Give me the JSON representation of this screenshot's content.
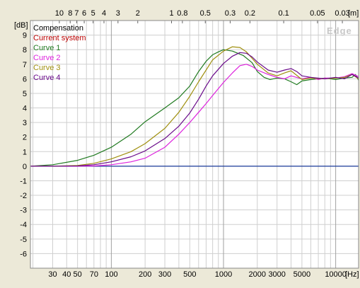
{
  "chart_data": {
    "type": "line",
    "x_scale": "log",
    "y_unit": "[dB]",
    "x_unit": "[Hz]",
    "top_unit": "[m]",
    "xlim": [
      19,
      16000
    ],
    "ylim": [
      -7,
      10
    ],
    "y_ticks": [
      9,
      8,
      7,
      6,
      5,
      4,
      3,
      2,
      1,
      0,
      -1,
      -2,
      -3,
      -4,
      -5,
      -6
    ],
    "x_tick_labels": [
      {
        "v": 30,
        "label": "30"
      },
      {
        "v": 40,
        "label": "40"
      },
      {
        "v": 50,
        "label": "50"
      },
      {
        "v": 70,
        "label": "70"
      },
      {
        "v": 100,
        "label": "100"
      },
      {
        "v": 200,
        "label": "200"
      },
      {
        "v": 300,
        "label": "300"
      },
      {
        "v": 500,
        "label": "500"
      },
      {
        "v": 1000,
        "label": "1000"
      },
      {
        "v": 2000,
        "label": "2000"
      },
      {
        "v": 3000,
        "label": "3000"
      },
      {
        "v": 5000,
        "label": "5000"
      },
      {
        "v": 10000,
        "label": "10000"
      }
    ],
    "top_tick_labels": [
      {
        "v": 10,
        "label": "10"
      },
      {
        "v": 8,
        "label": "8"
      },
      {
        "v": 7,
        "label": "7"
      },
      {
        "v": 6,
        "label": "6"
      },
      {
        "v": 5,
        "label": "5"
      },
      {
        "v": 4,
        "label": "4"
      },
      {
        "v": 3,
        "label": "3"
      },
      {
        "v": 2,
        "label": "2"
      },
      {
        "v": 1,
        "label": "1"
      },
      {
        "v": 0.8,
        "label": "0.8"
      },
      {
        "v": 0.5,
        "label": "0.5"
      },
      {
        "v": 0.3,
        "label": "0.3"
      },
      {
        "v": 0.2,
        "label": "0.2"
      },
      {
        "v": 0.1,
        "label": "0.1"
      },
      {
        "v": 0.05,
        "label": "0.05"
      },
      {
        "v": 0.03,
        "label": "0.03"
      }
    ],
    "watermark": "Edge",
    "legend_position": "top-left",
    "grid": true,
    "series": [
      {
        "name": "Compensation",
        "color": "#000000",
        "x": [],
        "y": []
      },
      {
        "name": "Current system",
        "color": "#bb0000",
        "x": [],
        "y": []
      },
      {
        "name": "Curve 1",
        "color": "#207a20",
        "x": [
          19,
          30,
          50,
          70,
          100,
          150,
          200,
          300,
          400,
          500,
          600,
          700,
          800,
          900,
          1000,
          1200,
          1500,
          1800,
          2000,
          2300,
          2600,
          3000,
          3500,
          4000,
          4500,
          5000,
          6000,
          7000,
          8000,
          10000,
          12000,
          14000,
          15000,
          16000
        ],
        "y": [
          0.0,
          0.1,
          0.4,
          0.75,
          1.3,
          2.2,
          3.05,
          4.0,
          4.7,
          5.5,
          6.5,
          7.2,
          7.65,
          7.85,
          8.0,
          7.9,
          7.6,
          7.1,
          6.5,
          6.1,
          5.95,
          6.05,
          6.0,
          5.8,
          5.6,
          5.85,
          5.95,
          6.0,
          6.05,
          5.95,
          6.05,
          6.1,
          6.3,
          5.9
        ]
      },
      {
        "name": "Curve 2",
        "color": "#dd22dd",
        "x": [
          19,
          50,
          70,
          100,
          150,
          200,
          300,
          400,
          500,
          600,
          700,
          800,
          1000,
          1200,
          1400,
          1600,
          1800,
          2000,
          2500,
          3000,
          3500,
          4000,
          5000,
          6000,
          7000,
          8000,
          10000,
          12000,
          14000,
          16000
        ],
        "y": [
          0.0,
          0.0,
          0.02,
          0.1,
          0.3,
          0.55,
          1.3,
          2.2,
          3.0,
          3.7,
          4.3,
          4.85,
          5.75,
          6.4,
          6.9,
          7.0,
          6.85,
          6.6,
          6.3,
          6.1,
          6.0,
          6.2,
          6.0,
          6.1,
          5.95,
          6.05,
          6.05,
          6.15,
          6.35,
          6.15
        ]
      },
      {
        "name": "Curve 3",
        "color": "#a09010",
        "x": [
          19,
          30,
          50,
          70,
          100,
          150,
          200,
          300,
          400,
          500,
          600,
          700,
          800,
          1000,
          1200,
          1400,
          1600,
          1800,
          2000,
          2500,
          3000,
          3500,
          4000,
          5000,
          6000,
          8000,
          10000,
          12000,
          14000,
          16000
        ],
        "y": [
          0.0,
          0.0,
          0.05,
          0.2,
          0.5,
          1.0,
          1.55,
          2.6,
          3.7,
          4.8,
          5.8,
          6.6,
          7.3,
          7.9,
          8.2,
          8.15,
          7.85,
          7.4,
          7.0,
          6.4,
          6.2,
          6.4,
          6.55,
          5.95,
          6.05,
          6.0,
          6.05,
          6.1,
          6.3,
          6.0
        ]
      },
      {
        "name": "Curve 4",
        "color": "#6a0a8a",
        "x": [
          19,
          30,
          50,
          70,
          100,
          150,
          200,
          300,
          400,
          500,
          600,
          700,
          800,
          1000,
          1200,
          1400,
          1600,
          1800,
          2000,
          2500,
          3000,
          3500,
          4000,
          4500,
          5000,
          6000,
          8000,
          10000,
          12000,
          14000,
          16000
        ],
        "y": [
          0.0,
          0.0,
          0.02,
          0.1,
          0.3,
          0.65,
          1.05,
          1.9,
          2.75,
          3.65,
          4.6,
          5.5,
          6.2,
          7.05,
          7.55,
          7.8,
          7.75,
          7.5,
          7.15,
          6.6,
          6.45,
          6.6,
          6.7,
          6.5,
          6.2,
          6.1,
          6.0,
          6.1,
          6.0,
          6.3,
          6.05
        ]
      }
    ],
    "baseline": {
      "name": "Compensation",
      "color": "#1a3a9a",
      "y": 0
    }
  }
}
